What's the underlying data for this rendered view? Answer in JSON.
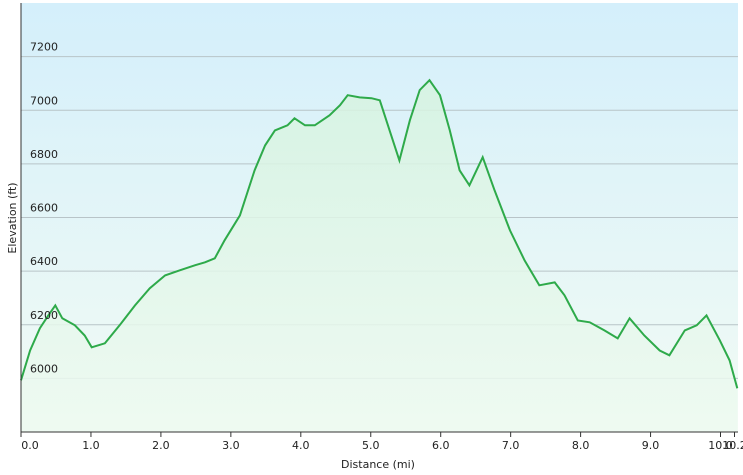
{
  "chart_data": {
    "type": "area",
    "xlabel": "Distance  (mi)",
    "ylabel": "Elevation (ft)",
    "x": [
      0,
      0.13,
      0.27,
      0.39,
      0.49,
      0.59,
      0.77,
      0.91,
      1.01,
      1.2,
      1.41,
      1.63,
      1.84,
      2.06,
      2.27,
      2.49,
      2.63,
      2.77,
      2.91,
      3.13,
      3.34,
      3.49,
      3.63,
      3.81,
      3.91,
      4.06,
      4.2,
      4.41,
      4.56,
      4.67,
      4.84,
      5.01,
      5.13,
      5.27,
      5.41,
      5.56,
      5.7,
      5.84,
      5.99,
      6.13,
      6.27,
      6.41,
      6.6,
      6.77,
      6.99,
      7.2,
      7.41,
      7.63,
      7.77,
      7.96,
      8.13,
      8.34,
      8.53,
      8.7,
      8.91,
      9.13,
      9.27,
      9.49,
      9.66,
      9.8,
      9.99,
      10.13,
      10.24
    ],
    "values": [
      5993,
      6104,
      6187,
      6235,
      6272,
      6224,
      6198,
      6160,
      6116,
      6131,
      6198,
      6272,
      6336,
      6384,
      6403,
      6422,
      6433,
      6448,
      6515,
      6608,
      6776,
      6869,
      6925,
      6944,
      6970,
      6944,
      6944,
      6981,
      7019,
      7056,
      7048,
      7045,
      7037,
      6925,
      6813,
      6963,
      7075,
      7112,
      7056,
      6925,
      6776,
      6720,
      6825,
      6701,
      6552,
      6440,
      6347,
      6358,
      6310,
      6216,
      6209,
      6179,
      6149,
      6224,
      6160,
      6104,
      6086,
      6179,
      6198,
      6235,
      6142,
      6067,
      5963
    ],
    "color": "#2eaa4a",
    "xlim": [
      0,
      10.25
    ],
    "ylim": [
      5800,
      7400
    ],
    "xticks": [
      {
        "value": 0,
        "label": "0.0"
      },
      {
        "value": 1,
        "label": "1.0"
      },
      {
        "value": 2,
        "label": "2.0"
      },
      {
        "value": 3,
        "label": "3.0"
      },
      {
        "value": 4,
        "label": "4.0"
      },
      {
        "value": 5,
        "label": "5.0"
      },
      {
        "value": 6,
        "label": "6.0"
      },
      {
        "value": 7,
        "label": "7.0"
      },
      {
        "value": 8,
        "label": "8.0"
      },
      {
        "value": 9,
        "label": "9.0"
      },
      {
        "value": 10,
        "label": "10.0"
      },
      10.2
    ],
    "yticks": [
      6000,
      6200,
      6400,
      6600,
      6800,
      7000,
      7200
    ],
    "grid": true
  }
}
